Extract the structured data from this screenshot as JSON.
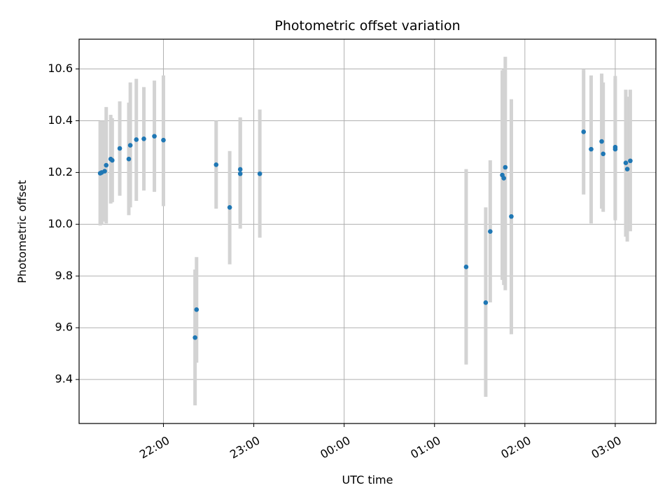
{
  "chart_data": {
    "type": "scatter",
    "title": "Photometric offset variation",
    "xlabel": "UTC time",
    "ylabel": "Photometric offset",
    "grid": true,
    "x_ticks": [
      {
        "value": "22:00",
        "label": "22:00"
      },
      {
        "value": "23:00",
        "label": "23:00"
      },
      {
        "value": "00:00",
        "label": "00:00"
      },
      {
        "value": "01:00",
        "label": "01:00"
      },
      {
        "value": "02:00",
        "label": "02:00"
      },
      {
        "value": "03:00",
        "label": "03:00"
      }
    ],
    "y_ticks": [
      9.4,
      9.6,
      9.8,
      10.0,
      10.2,
      10.4,
      10.6
    ],
    "xlim": [
      "21:04",
      "03:27"
    ],
    "ylim": [
      9.23,
      10.715
    ],
    "colors": {
      "point": "#1f77b4",
      "errorbar": "#d3d3d3",
      "grid": "#b0b0b0"
    },
    "series": [
      {
        "points": [
          {
            "x": "21:18",
            "y": 10.197,
            "ylo": 9.995,
            "yhi": 10.398
          },
          {
            "x": "21:19",
            "y": 10.2,
            "ylo": 10.0,
            "yhi": 10.4
          },
          {
            "x": "21:21",
            "y": 10.205,
            "ylo": 10.01,
            "yhi": 10.4
          },
          {
            "x": "21:22",
            "y": 10.228,
            "ylo": 10.003,
            "yhi": 10.453
          },
          {
            "x": "21:25",
            "y": 10.252,
            "ylo": 10.08,
            "yhi": 10.423
          },
          {
            "x": "21:26",
            "y": 10.247,
            "ylo": 10.085,
            "yhi": 10.41
          },
          {
            "x": "21:31",
            "y": 10.293,
            "ylo": 10.11,
            "yhi": 10.475
          },
          {
            "x": "21:37",
            "y": 10.252,
            "ylo": 10.035,
            "yhi": 10.47
          },
          {
            "x": "21:38",
            "y": 10.305,
            "ylo": 10.065,
            "yhi": 10.548
          },
          {
            "x": "21:42",
            "y": 10.327,
            "ylo": 10.09,
            "yhi": 10.562
          },
          {
            "x": "21:47",
            "y": 10.33,
            "ylo": 10.13,
            "yhi": 10.53
          },
          {
            "x": "21:54",
            "y": 10.34,
            "ylo": 10.125,
            "yhi": 10.555
          },
          {
            "x": "22:00",
            "y": 10.325,
            "ylo": 10.07,
            "yhi": 10.575
          },
          {
            "x": "22:21",
            "y": 9.562,
            "ylo": 9.3,
            "yhi": 9.825
          },
          {
            "x": "22:22",
            "y": 9.67,
            "ylo": 9.465,
            "yhi": 9.873
          },
          {
            "x": "22:35",
            "y": 10.23,
            "ylo": 10.06,
            "yhi": 10.4
          },
          {
            "x": "22:44",
            "y": 10.065,
            "ylo": 9.845,
            "yhi": 10.283
          },
          {
            "x": "22:51",
            "y": 10.195,
            "ylo": 9.983,
            "yhi": 10.408
          },
          {
            "x": "22:51",
            "y": 10.212,
            "ylo": 10.01,
            "yhi": 10.413
          },
          {
            "x": "23:04",
            "y": 10.195,
            "ylo": 9.948,
            "yhi": 10.443
          },
          {
            "x": "01:21",
            "y": 9.835,
            "ylo": 9.458,
            "yhi": 10.213
          },
          {
            "x": "01:34",
            "y": 9.697,
            "ylo": 9.333,
            "yhi": 10.065
          },
          {
            "x": "01:37",
            "y": 9.972,
            "ylo": 9.698,
            "yhi": 10.247
          },
          {
            "x": "01:45",
            "y": 10.19,
            "ylo": 9.785,
            "yhi": 10.595
          },
          {
            "x": "01:46",
            "y": 10.178,
            "ylo": 9.765,
            "yhi": 10.598
          },
          {
            "x": "01:47",
            "y": 10.22,
            "ylo": 9.745,
            "yhi": 10.647
          },
          {
            "x": "01:51",
            "y": 10.03,
            "ylo": 9.575,
            "yhi": 10.483
          },
          {
            "x": "02:39",
            "y": 10.357,
            "ylo": 10.115,
            "yhi": 10.598
          },
          {
            "x": "02:44",
            "y": 10.29,
            "ylo": 10.003,
            "yhi": 10.575
          },
          {
            "x": "02:51",
            "y": 10.32,
            "ylo": 10.06,
            "yhi": 10.582
          },
          {
            "x": "02:52",
            "y": 10.272,
            "ylo": 10.048,
            "yhi": 10.548
          },
          {
            "x": "03:00",
            "y": 10.298,
            "ylo": 10.023,
            "yhi": 10.573
          },
          {
            "x": "03:00",
            "y": 10.29,
            "ylo": 10.015,
            "yhi": 10.56
          },
          {
            "x": "03:07",
            "y": 10.237,
            "ylo": 9.952,
            "yhi": 10.52
          },
          {
            "x": "03:08",
            "y": 10.213,
            "ylo": 9.933,
            "yhi": 10.493
          },
          {
            "x": "03:10",
            "y": 10.245,
            "ylo": 9.973,
            "yhi": 10.52
          }
        ]
      }
    ]
  }
}
